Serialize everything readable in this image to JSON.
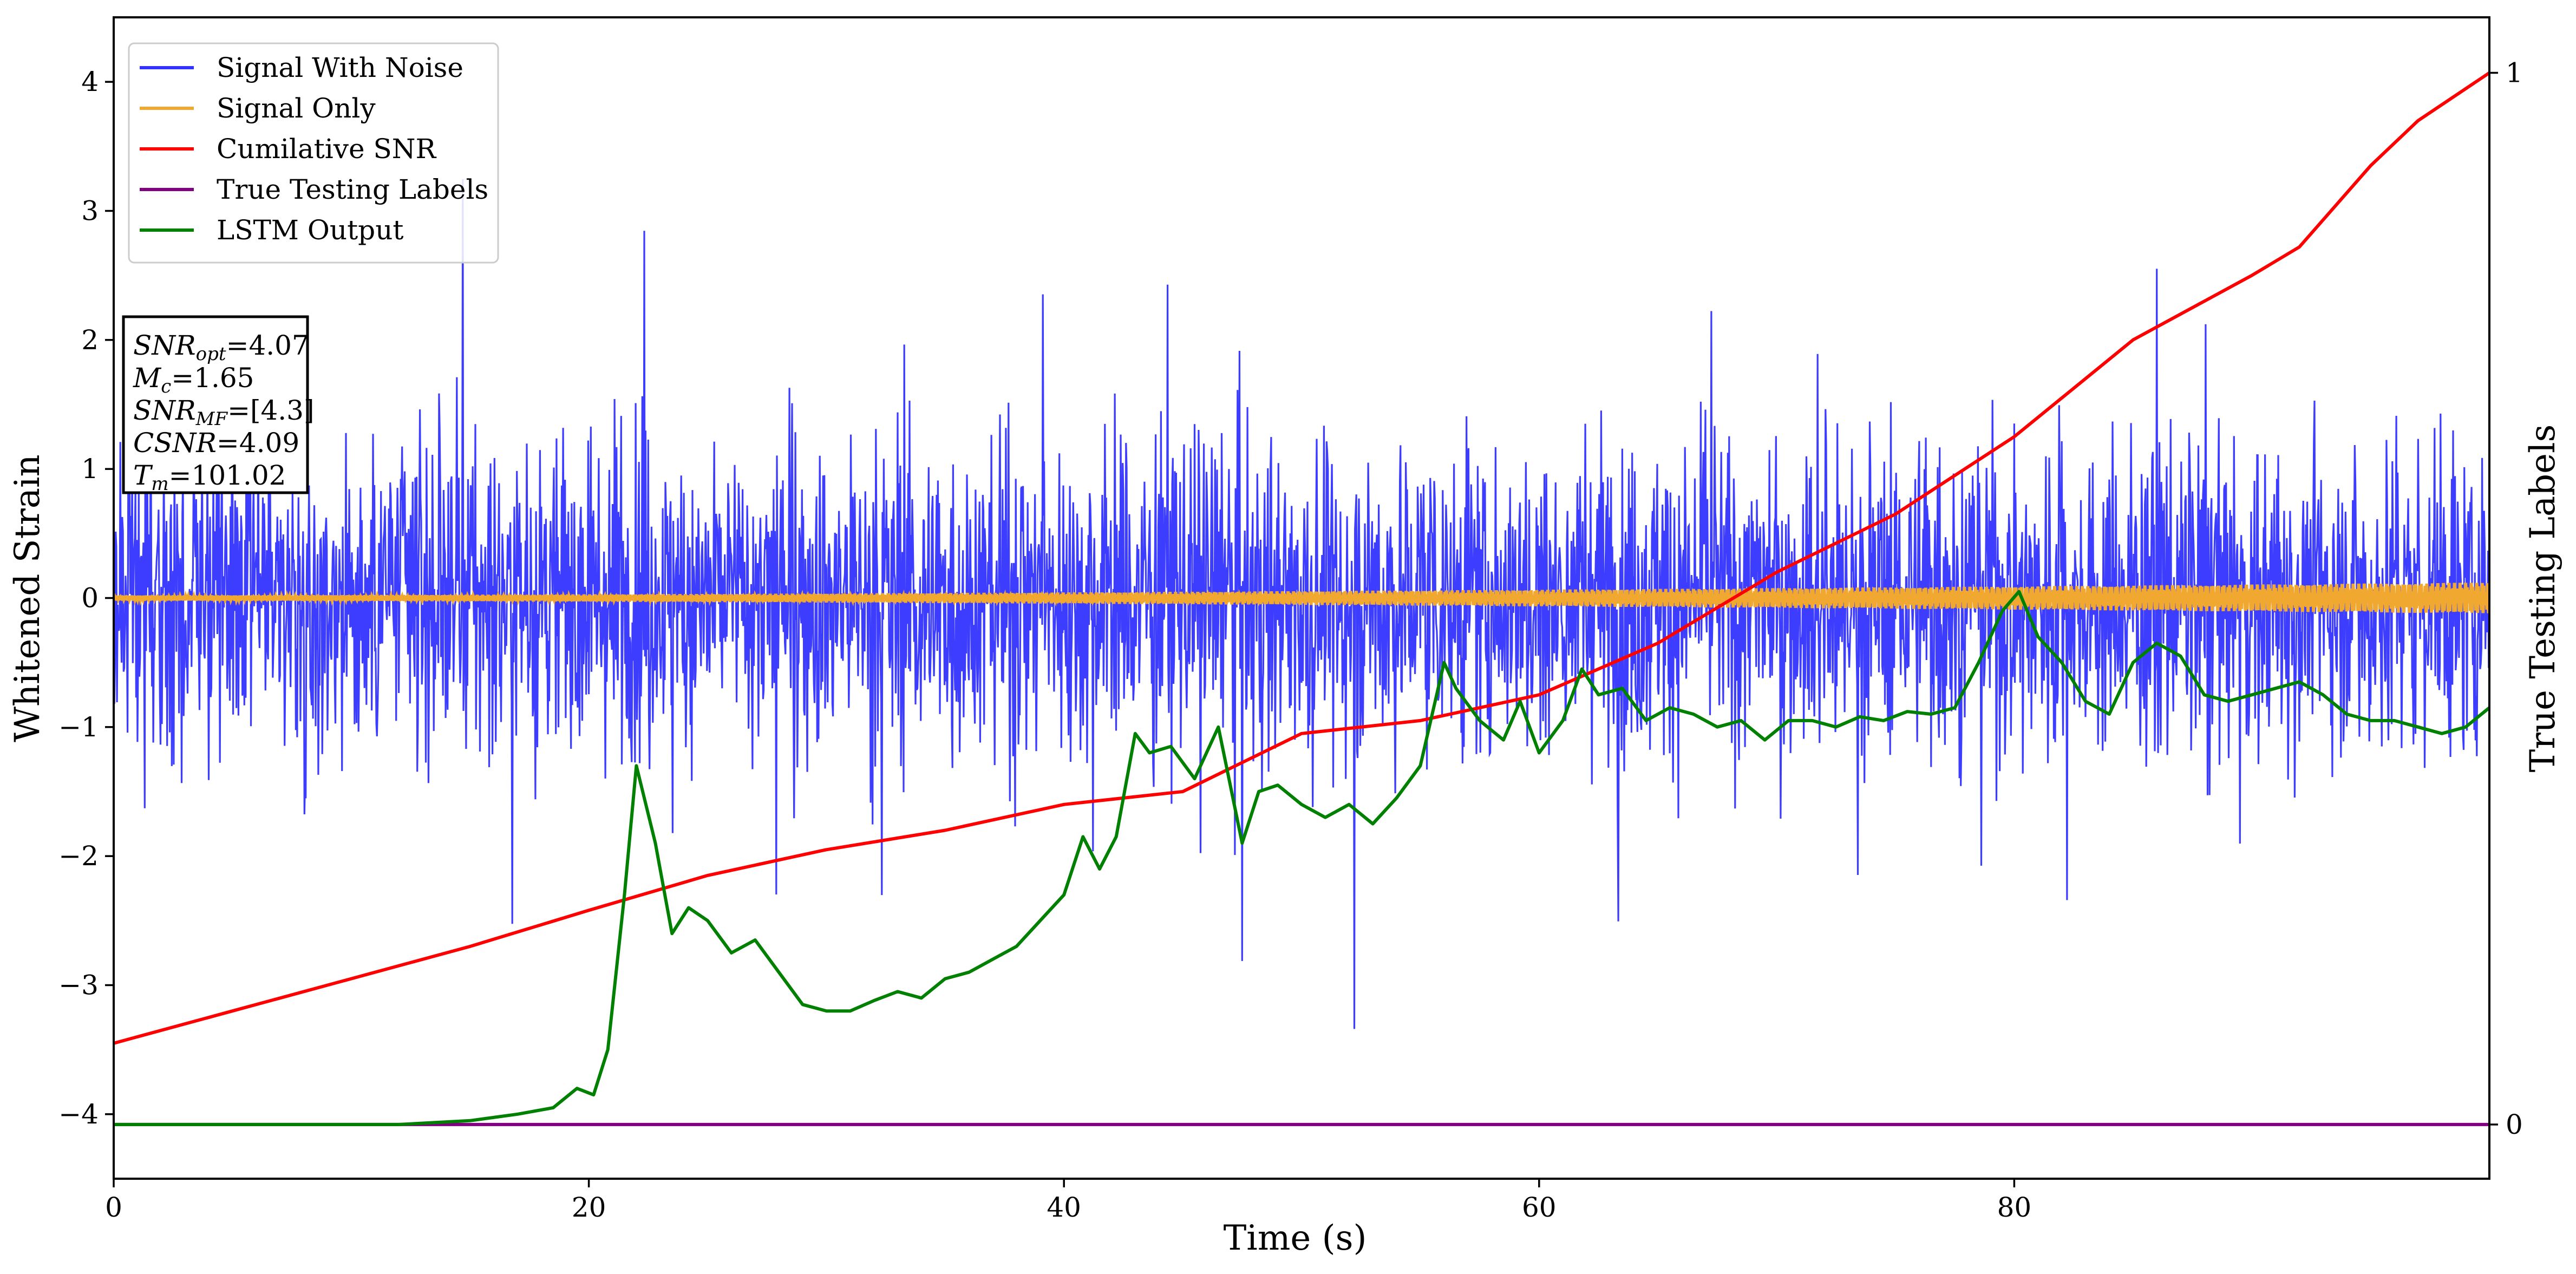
{
  "chart_data": {
    "type": "line",
    "xlabel": "Time (s)",
    "ylabel": "Whitened Strain",
    "ylabel_right": "True Testing Labels",
    "xlim": [
      0,
      100
    ],
    "ylim": [
      -4.5,
      4.5
    ],
    "xticks": [
      0,
      20,
      40,
      60,
      80
    ],
    "yticks": [
      -4,
      -3,
      -2,
      -1,
      0,
      1,
      2,
      3,
      4
    ],
    "yticks_right": [
      0,
      1
    ],
    "grid": false,
    "legend_placement": "top-left",
    "info_box": {
      "lines": [
        {
          "sym": "SNR",
          "sub": "opt",
          "value": "=4.07"
        },
        {
          "sym": "M",
          "sub": "c",
          "value": "=1.65"
        },
        {
          "sym": "SNR",
          "sub": "MF",
          "value": "=[4.3]"
        },
        {
          "sym": "CSNR",
          "sub": "",
          "value": "=4.09"
        },
        {
          "sym": "T",
          "sub": "m",
          "value": "=101.02"
        }
      ]
    },
    "series": [
      {
        "name": "Signal With Noise",
        "color": "#3333ff",
        "style": "dense-noise",
        "approx_range": [
          -4.1,
          4.0
        ]
      },
      {
        "name": "Signal Only",
        "color": "#f0a830",
        "style": "chirp-band",
        "amplitude_start": 0.02,
        "amplitude_end": 0.12
      },
      {
        "name": "Cumilative SNR",
        "color": "#ff0000",
        "axis": "y",
        "x": [
          0,
          5,
          10,
          15,
          20,
          25,
          30,
          35,
          40,
          45,
          50,
          55,
          60,
          65,
          70,
          75,
          80,
          85,
          90,
          92,
          95,
          97,
          100
        ],
        "values": [
          -3.45,
          -3.2,
          -2.95,
          -2.7,
          -2.42,
          -2.15,
          -1.95,
          -1.8,
          -1.6,
          -1.5,
          -1.05,
          -0.95,
          -0.75,
          -0.35,
          0.2,
          0.65,
          1.25,
          2.0,
          2.5,
          2.72,
          3.35,
          3.7,
          4.07
        ]
      },
      {
        "name": "True Testing Labels",
        "color": "#800080",
        "axis": "y",
        "x": [
          0,
          100
        ],
        "values": [
          -4.08,
          -4.08
        ]
      },
      {
        "name": "LSTM Output",
        "color": "#008000",
        "axis": "y",
        "x": [
          0,
          12,
          15,
          17,
          18.5,
          19.5,
          20.2,
          20.8,
          21.5,
          22,
          22.8,
          23.5,
          24.2,
          25,
          26,
          27,
          28,
          29,
          30,
          31,
          32,
          33,
          34,
          35,
          36,
          37,
          38,
          39,
          40,
          40.8,
          41.5,
          42.2,
          43,
          43.6,
          44.5,
          45.5,
          46.5,
          47.5,
          48.2,
          49,
          50,
          51,
          52,
          53,
          54,
          55,
          56,
          56.5,
          57.5,
          58.5,
          59.2,
          60,
          61,
          61.8,
          62.5,
          63.5,
          64.5,
          65.5,
          66.5,
          67.5,
          68.5,
          69.5,
          70.5,
          71.5,
          72.5,
          73.5,
          74.5,
          75.5,
          76.5,
          77.5,
          78.5,
          79.5,
          80.2,
          81,
          82,
          83,
          84,
          85,
          86,
          87,
          88,
          89,
          90,
          91,
          92,
          93,
          94,
          95,
          96,
          97,
          98,
          99,
          100
        ],
        "values": [
          -4.08,
          -4.08,
          -4.05,
          -4.0,
          -3.95,
          -3.8,
          -3.85,
          -3.5,
          -2.3,
          -1.3,
          -1.9,
          -2.6,
          -2.4,
          -2.5,
          -2.75,
          -2.65,
          -2.9,
          -3.15,
          -3.2,
          -3.2,
          -3.12,
          -3.05,
          -3.1,
          -2.95,
          -2.9,
          -2.8,
          -2.7,
          -2.5,
          -2.3,
          -1.85,
          -2.1,
          -1.85,
          -1.05,
          -1.2,
          -1.15,
          -1.4,
          -1.0,
          -1.9,
          -1.5,
          -1.45,
          -1.6,
          -1.7,
          -1.6,
          -1.75,
          -1.55,
          -1.3,
          -0.5,
          -0.7,
          -0.95,
          -1.1,
          -0.8,
          -1.2,
          -0.95,
          -0.55,
          -0.75,
          -0.7,
          -0.95,
          -0.85,
          -0.9,
          -1.0,
          -0.95,
          -1.1,
          -0.95,
          -0.95,
          -1.0,
          -0.92,
          -0.95,
          -0.88,
          -0.9,
          -0.85,
          -0.5,
          -0.1,
          0.05,
          -0.3,
          -0.5,
          -0.8,
          -0.9,
          -0.5,
          -0.35,
          -0.45,
          -0.75,
          -0.8,
          -0.75,
          -0.7,
          -0.65,
          -0.75,
          -0.9,
          -0.95,
          -0.95,
          -1.0,
          -1.05,
          -1.0,
          -0.85
        ]
      }
    ]
  }
}
